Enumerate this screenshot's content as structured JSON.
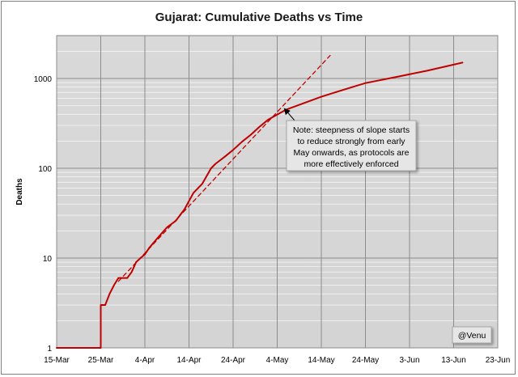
{
  "chart_data": {
    "type": "line",
    "title": "Gujarat: Cumulative Deaths vs Time",
    "xlabel": "",
    "ylabel": "Deaths",
    "y_scale": "log",
    "ylim": [
      1,
      3000
    ],
    "xlim": [
      "15-Mar",
      "23-Jun"
    ],
    "x_ticks": [
      "15-Mar",
      "25-Mar",
      "4-Apr",
      "14-Apr",
      "24-Apr",
      "4-May",
      "14-May",
      "24-May",
      "3-Jun",
      "13-Jun",
      "23-Jun"
    ],
    "y_ticks": [
      "1",
      "10",
      "100",
      "1000"
    ],
    "grid": true,
    "series": [
      {
        "color": "#c00000",
        "style": "solid",
        "x": [
          "15-Mar",
          "25-Mar",
          "25-Mar",
          "26-Mar",
          "27-Mar",
          "28-Mar",
          "29-Mar",
          "30-Mar",
          "31-Mar",
          "1-Apr",
          "2-Apr",
          "3-Apr",
          "4-Apr",
          "5-Apr",
          "7-Apr",
          "9-Apr",
          "11-Apr",
          "13-Apr",
          "15-Apr",
          "17-Apr",
          "19-Apr",
          "20-Apr",
          "22-Apr",
          "24-Apr",
          "26-Apr",
          "28-Apr",
          "30-Apr",
          "2-May",
          "4-May",
          "6-May",
          "10-May",
          "14-May",
          "18-May",
          "24-May",
          "31-May",
          "7-Jun",
          "15-Jun"
        ],
        "y": [
          1,
          1,
          3,
          3,
          4,
          5,
          6,
          6,
          6,
          7,
          9,
          10,
          11,
          13,
          17,
          22,
          26,
          35,
          53,
          67,
          100,
          112,
          133,
          160,
          197,
          236,
          290,
          349,
          396,
          449,
          530,
          625,
          722,
          888,
          1040,
          1220,
          1500
        ]
      },
      {
        "color": "#c00000",
        "style": "dashed",
        "x": [
          "29-Mar",
          "16-May"
        ],
        "y": [
          5.5,
          1800
        ]
      }
    ],
    "annotations": [
      {
        "text_lines": [
          "Note: steepness of slope starts",
          "to reduce strongly from early",
          "May onwards, as protocols are",
          "more effectively enforced"
        ],
        "points_to": {
          "x": "5-May",
          "y": 400
        }
      },
      {
        "text_lines": [
          "@Venu"
        ]
      }
    ]
  }
}
